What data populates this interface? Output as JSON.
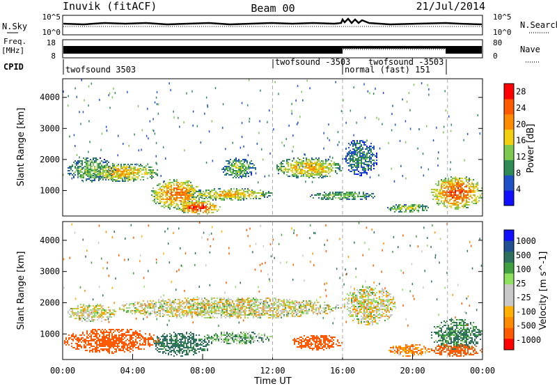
{
  "header": {
    "station": "Inuvik (fitACF)",
    "beam": "Beam 00",
    "date": "21/Jul/2014"
  },
  "nsky_panel": {
    "left_label": "N.Sky",
    "right_label": "N.Search",
    "left_ticks": [
      "10^5",
      "10^0"
    ],
    "right_ticks": [
      "10^5",
      "10^0"
    ]
  },
  "freq_panel": {
    "left_label": "Freq.",
    "left_unit": "[MHz]",
    "right_label": "Nave",
    "left_ticks": [
      "18",
      "8"
    ],
    "right_ticks": [
      "80",
      "0"
    ]
  },
  "cpid_panel": {
    "label": "CPID",
    "segments": [
      {
        "text": "twofsound 3503",
        "start_hour": 0,
        "row": 2
      },
      {
        "text": "twofsound -3503",
        "start_hour": 12,
        "row": 1
      },
      {
        "text": "normal (fast) 151",
        "start_hour": 16,
        "row": 2
      },
      {
        "text": "twofsound -3503",
        "start_hour": 16,
        "row": 1
      }
    ]
  },
  "colors": {
    "power_scale": [
      "#1010ff",
      "#2050c8",
      "#2e8b57",
      "#7cc850",
      "#f0d010",
      "#ff8c00",
      "#ff5a00",
      "#ff0000"
    ],
    "velocity_scale": [
      "#ff0000",
      "#ff5a00",
      "#ff8c00",
      "#ffb000",
      "#c8c8c8",
      "#c8c8c8",
      "#90e060",
      "#40a040",
      "#2e7060",
      "#205090",
      "#1010ff"
    ]
  },
  "chart_data": [
    {
      "type": "heatmap",
      "panel": "power",
      "xlabel": "",
      "ylabel": "Slant Range [km]",
      "xlim": [
        0,
        24
      ],
      "ylim": [
        180,
        4600
      ],
      "yticks": [
        "1000",
        "2000",
        "3000",
        "4000"
      ],
      "colorbar": {
        "label": "Power [dB]",
        "ticks": [
          "28",
          "24",
          "20",
          "16",
          "12",
          "8",
          "4"
        ],
        "range": [
          0,
          30
        ]
      },
      "echo_regions": [
        {
          "hours": [
            0.2,
            3.0
          ],
          "range_km": [
            1300,
            2100
          ],
          "power_db": 14
        },
        {
          "hours": [
            1.5,
            5.5
          ],
          "range_km": [
            1300,
            1900
          ],
          "power_db": 20
        },
        {
          "hours": [
            5.0,
            8.0
          ],
          "range_km": [
            400,
            1400
          ],
          "power_db": 24
        },
        {
          "hours": [
            6.5,
            9.0
          ],
          "range_km": [
            250,
            700
          ],
          "power_db": 28
        },
        {
          "hours": [
            7.0,
            12.0
          ],
          "range_km": [
            700,
            1100
          ],
          "power_db": 20
        },
        {
          "hours": [
            12.0,
            16.0
          ],
          "range_km": [
            1400,
            2100
          ],
          "power_db": 20
        },
        {
          "hours": [
            14.0,
            18.0
          ],
          "range_km": [
            700,
            1000
          ],
          "power_db": 14
        },
        {
          "hours": [
            16.0,
            18.0
          ],
          "range_km": [
            1500,
            2700
          ],
          "power_db": 10
        },
        {
          "hours": [
            21.0,
            24.0
          ],
          "range_km": [
            400,
            1500
          ],
          "power_db": 26
        },
        {
          "hours": [
            9.0,
            11.0
          ],
          "range_km": [
            1400,
            2100
          ],
          "power_db": 14
        },
        {
          "hours": [
            18.5,
            21.0
          ],
          "range_km": [
            300,
            600
          ],
          "power_db": 16
        }
      ]
    },
    {
      "type": "heatmap",
      "panel": "velocity",
      "xlabel": "Time UT",
      "ylabel": "Slant Range [km]",
      "xlim": [
        0,
        24
      ],
      "ylim": [
        180,
        4600
      ],
      "xticks": [
        "00:00",
        "04:00",
        "08:00",
        "12:00",
        "16:00",
        "20:00",
        "00:00"
      ],
      "yticks": [
        "1000",
        "2000",
        "3000",
        "4000"
      ],
      "colorbar": {
        "label": "Velocity [m s^-1]",
        "ticks": [
          "1000",
          "500",
          "100",
          "25",
          "-25",
          "-100",
          "-500",
          "-1000"
        ]
      },
      "echo_regions": [
        {
          "hours": [
            0.2,
            3.0
          ],
          "range_km": [
            1400,
            2000
          ],
          "velocity": 0
        },
        {
          "hours": [
            0.0,
            5.5
          ],
          "range_km": [
            400,
            1200
          ],
          "velocity": -200
        },
        {
          "hours": [
            5.0,
            8.5
          ],
          "range_km": [
            300,
            1100
          ],
          "velocity": 150
        },
        {
          "hours": [
            3.0,
            16.0
          ],
          "range_km": [
            1500,
            2200
          ],
          "velocity": 0
        },
        {
          "hours": [
            8.0,
            12.0
          ],
          "range_km": [
            700,
            1100
          ],
          "velocity": 60
        },
        {
          "hours": [
            13.0,
            16.0
          ],
          "range_km": [
            500,
            1000
          ],
          "velocity": -250
        },
        {
          "hours": [
            16.0,
            19.0
          ],
          "range_km": [
            1300,
            2600
          ],
          "velocity": 0
        },
        {
          "hours": [
            18.5,
            21.0
          ],
          "range_km": [
            300,
            700
          ],
          "velocity": -80
        },
        {
          "hours": [
            21.0,
            24.0
          ],
          "range_km": [
            500,
            1500
          ],
          "velocity": 120
        },
        {
          "hours": [
            21.0,
            24.0
          ],
          "range_km": [
            300,
            700
          ],
          "velocity": -300
        }
      ]
    }
  ]
}
